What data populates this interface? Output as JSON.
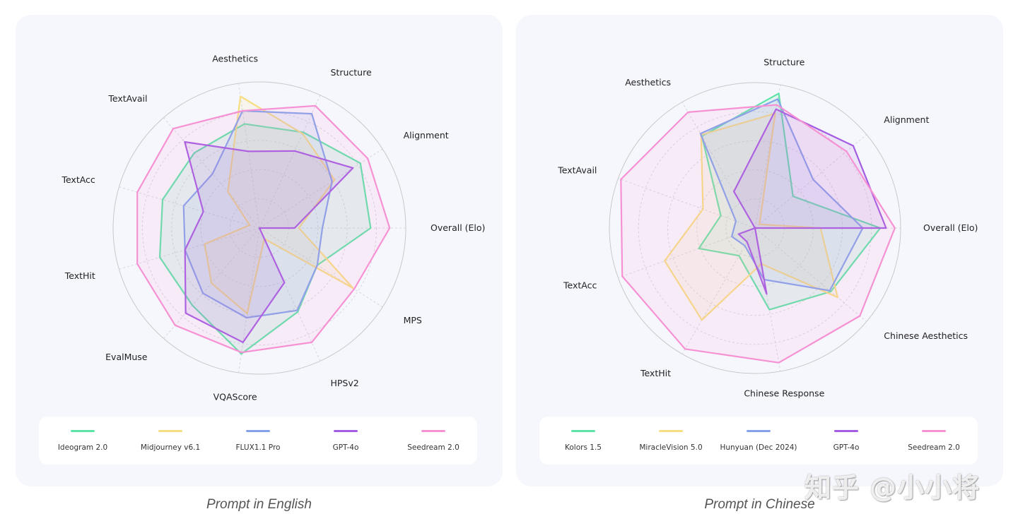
{
  "chart_data": [
    {
      "type": "radar",
      "caption": "Prompt in English",
      "rmax": 100,
      "axes": [
        "Overall (Elo)",
        "Alignment",
        "Structure",
        "Aesthetics",
        "TextAvail",
        "TextAcc",
        "TextHit",
        "EvalMuse",
        "VQAScore",
        "HPSv2",
        "MPS"
      ],
      "series": [
        {
          "name": "Ideogram 2.0",
          "color": "#5ee3a8",
          "values": [
            76,
            82,
            72,
            72,
            68,
            69,
            71,
            70,
            87,
            63,
            47
          ]
        },
        {
          "name": "Midjourney v6.1",
          "color": "#f7dd82",
          "values": [
            27,
            61,
            71,
            91,
            33,
            7,
            39,
            50,
            59,
            8,
            76
          ]
        },
        {
          "name": "FLUX1.1 Pro",
          "color": "#84a2ea",
          "values": [
            43,
            59,
            86,
            81,
            49,
            54,
            53,
            59,
            62,
            62,
            47
          ]
        },
        {
          "name": "GPT-4o",
          "color": "#a45ce2",
          "values": [
            24,
            76,
            58,
            53,
            78,
            40,
            53,
            77,
            79,
            41,
            0
          ]
        },
        {
          "name": "Seedream 2.0",
          "color": "#f692d4",
          "values": [
            89,
            88,
            92,
            81,
            90,
            87,
            87,
            88,
            86,
            86,
            77
          ]
        }
      ]
    },
    {
      "type": "radar",
      "caption": "Prompt in Chinese",
      "rmax": 100,
      "axes": [
        "Overall (Elo)",
        "Alignment",
        "Structure",
        "Aesthetics",
        "TextAvail",
        "TextAcc",
        "TextHit",
        "Chinese Response",
        "Chinese Aesthetics"
      ],
      "series": [
        {
          "name": "Kolors 1.5",
          "color": "#5ee3a8",
          "values": [
            86,
            34,
            94,
            73,
            25,
            41,
            22,
            57,
            68
          ]
        },
        {
          "name": "MiracleVision 5.0",
          "color": "#f7dd82",
          "values": [
            45,
            4,
            80,
            74,
            38,
            66,
            73,
            25,
            74
          ]
        },
        {
          "name": "Hunyuan (Dec 2024)",
          "color": "#84a2ea",
          "values": [
            74,
            52,
            90,
            75,
            14,
            17,
            14,
            36,
            67
          ]
        },
        {
          "name": "GPT-4o",
          "color": "#a45ce2",
          "values": [
            90,
            88,
            83,
            29,
            0,
            12,
            11,
            46,
            0
          ]
        },
        {
          "name": "Seedream 2.0",
          "color": "#f692d4",
          "values": [
            96,
            82,
            86,
            92,
            98,
            97,
            96,
            94,
            94
          ]
        }
      ]
    }
  ],
  "watermark": "知乎 @小小将"
}
